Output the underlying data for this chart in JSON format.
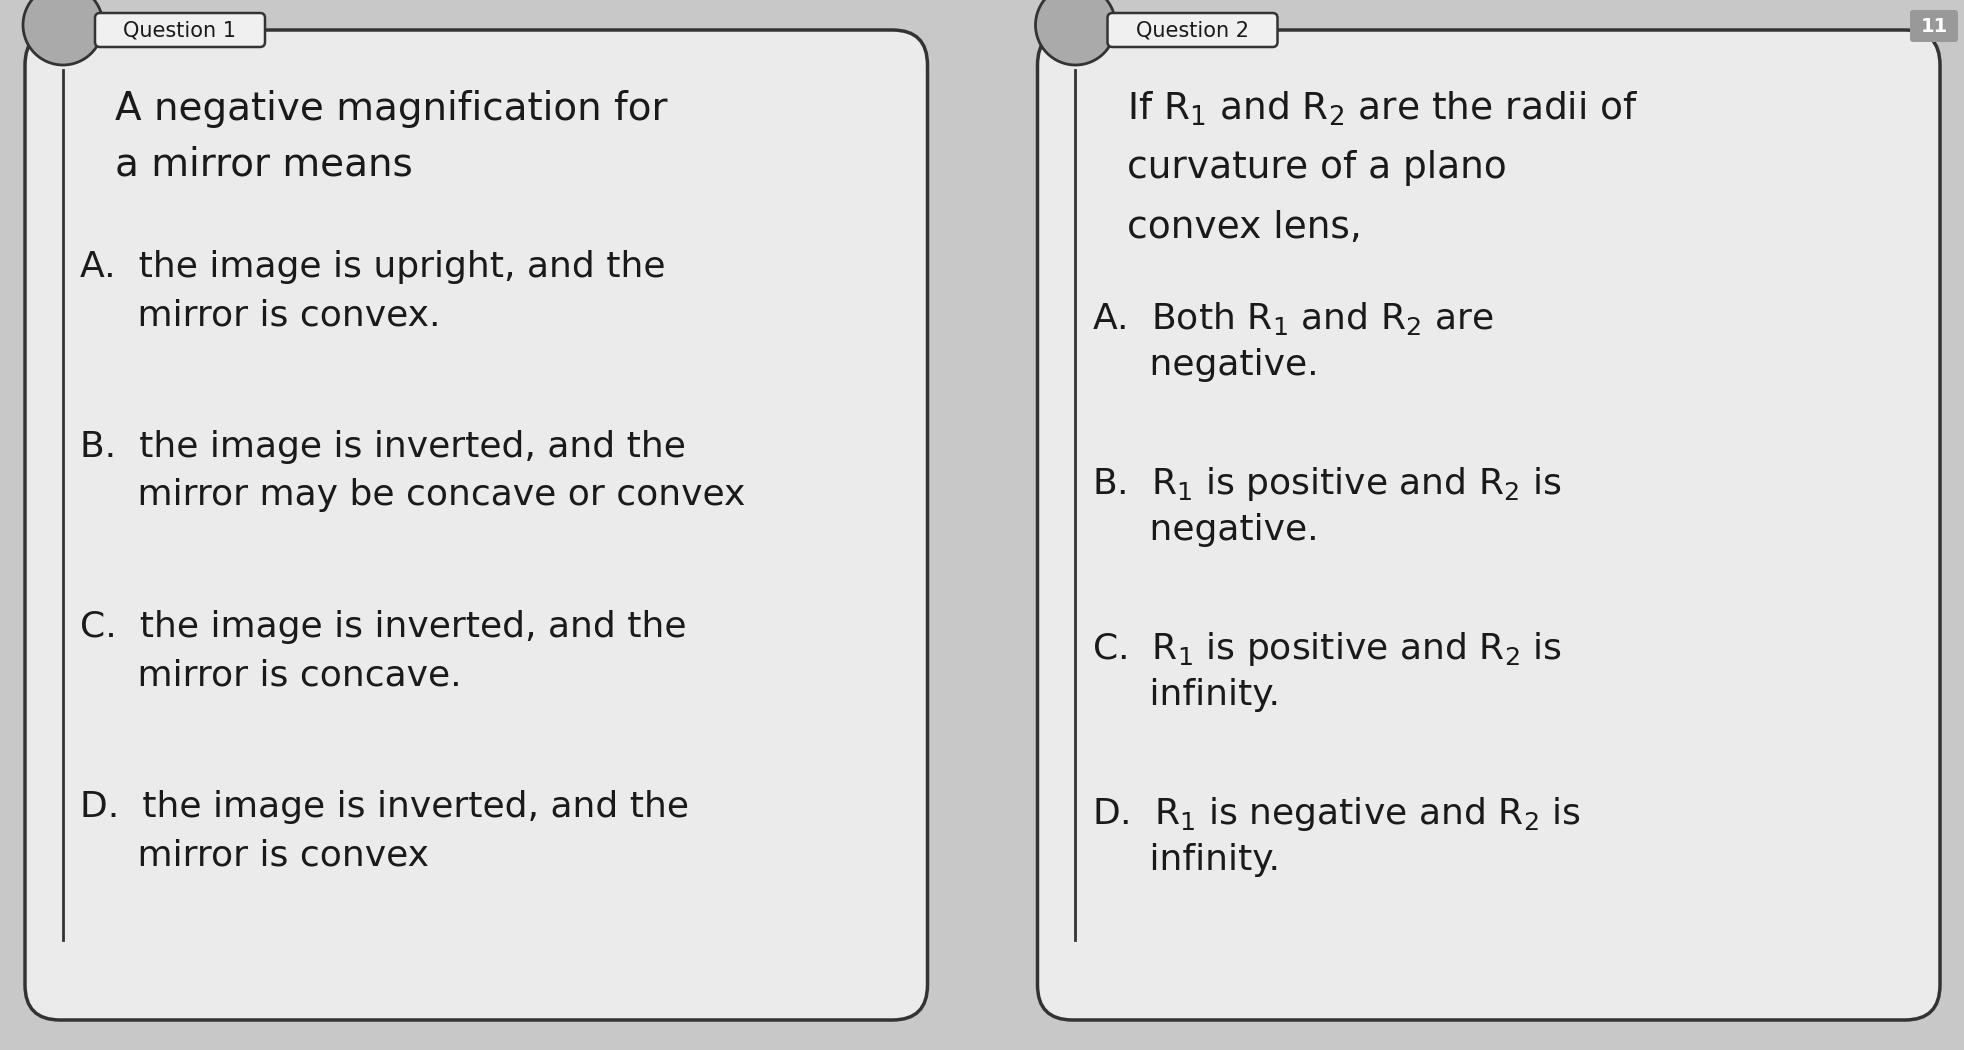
{
  "background_color": "#c8c8c8",
  "box_color": "#ebebeb",
  "box_edge_color": "#333333",
  "text_color": "#1a1a1a",
  "q1_header": "Question 1",
  "q2_header": "Question 2",
  "q1_stem_line1": "A negative magnification for",
  "q1_stem_line2": "a mirror means",
  "q1_options": [
    [
      "A.  the image is upright, and the",
      "     mirror is convex."
    ],
    [
      "B.  the image is inverted, and the",
      "     mirror may be concave or convex"
    ],
    [
      "C.  the image is inverted, and the",
      "     mirror is concave."
    ],
    [
      "D.  the image is inverted, and the",
      "     mirror is convex"
    ]
  ],
  "q2_stem_line1_pre": "If R",
  "q2_stem_line1_sub1": "1",
  "q2_stem_line1_mid": " and R",
  "q2_stem_line1_sub2": "2",
  "q2_stem_line1_post": " are the radii of",
  "q2_stem_line2": "curvature of a plano",
  "q2_stem_line3": "convex lens,",
  "q2_options": [
    [
      "A.  Both R",
      "1",
      " and R",
      "2",
      " are",
      "     negative."
    ],
    [
      "B.  R",
      "1",
      " is positive and R",
      "2",
      " is",
      "     negative."
    ],
    [
      "C.  R",
      "1",
      " is positive and R",
      "2",
      " is",
      "     infinity."
    ],
    [
      "D.  R",
      "1",
      " is negative and R",
      "2",
      " is",
      "     infinity."
    ]
  ],
  "figsize": [
    19.65,
    10.5
  ],
  "dpi": 100
}
